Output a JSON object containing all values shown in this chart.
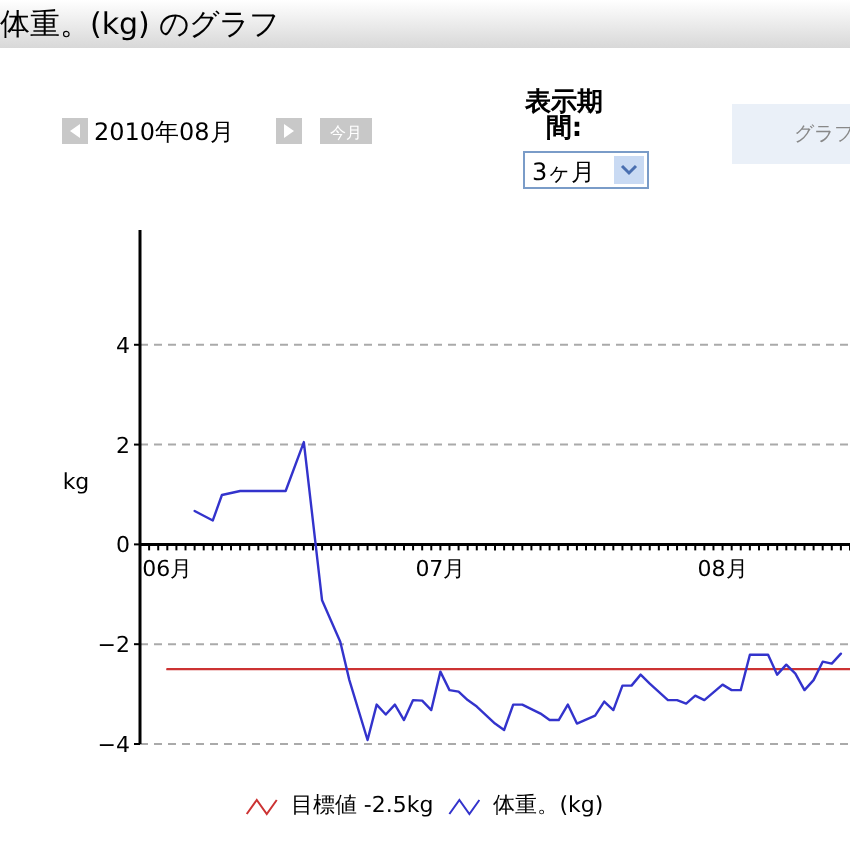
{
  "chart_data": {
    "type": "line",
    "title": "体重。(kg) のグラフ",
    "ylabel": "kg",
    "annotations": [
      "2010年08月",
      "今月",
      "表示期間:",
      "3ヶ月",
      "グラフ"
    ],
    "xlim": [
      "2010-05-29",
      "2010-08-15"
    ],
    "xticks": [
      {
        "value": "2010-06-01",
        "label": "06月"
      },
      {
        "value": "2010-07-01",
        "label": "07月"
      },
      {
        "value": "2010-08-01",
        "label": "08月"
      }
    ],
    "ylim": [
      -4,
      6.3
    ],
    "yticks": [
      -4,
      -2,
      0,
      2,
      4
    ],
    "grid": "y",
    "legend": "bottom",
    "marker": "none",
    "line_style": "solid",
    "series": [
      {
        "name": "目標値 -2.5kg",
        "color": "#cc3333",
        "x": [
          "2010-06-01",
          "2010-08-15"
        ],
        "values": [
          -2.5,
          -2.5
        ]
      },
      {
        "name": "体重。(kg)",
        "color": "#3333cc",
        "x": [
          "2010-06-04",
          "2010-06-06",
          "2010-06-07",
          "2010-06-09",
          "2010-06-14",
          "2010-06-16",
          "2010-06-18",
          "2010-06-20",
          "2010-06-21",
          "2010-06-23",
          "2010-06-24",
          "2010-06-25",
          "2010-06-26",
          "2010-06-27",
          "2010-06-28",
          "2010-06-29",
          "2010-06-30",
          "2010-07-01",
          "2010-07-02",
          "2010-07-03",
          "2010-07-04",
          "2010-07-05",
          "2010-07-07",
          "2010-07-08",
          "2010-07-09",
          "2010-07-10",
          "2010-07-12",
          "2010-07-13",
          "2010-07-14",
          "2010-07-15",
          "2010-07-16",
          "2010-07-18",
          "2010-07-19",
          "2010-07-20",
          "2010-07-21",
          "2010-07-22",
          "2010-07-23",
          "2010-07-24",
          "2010-07-26",
          "2010-07-27",
          "2010-07-28",
          "2010-07-29",
          "2010-07-30",
          "2010-08-01",
          "2010-08-02",
          "2010-08-03",
          "2010-08-04",
          "2010-08-06",
          "2010-08-07",
          "2010-08-08",
          "2010-08-09",
          "2010-08-10",
          "2010-08-11",
          "2010-08-12",
          "2010-08-13",
          "2010-08-14"
        ],
        "values": [
          0.67,
          0.48,
          0.99,
          1.07,
          1.07,
          2.05,
          -1.12,
          -1.95,
          -2.72,
          -3.92,
          -3.21,
          -3.41,
          -3.21,
          -3.52,
          -3.12,
          -3.13,
          -3.32,
          -2.55,
          -2.92,
          -2.95,
          -3.12,
          -3.25,
          -3.59,
          -3.72,
          -3.21,
          -3.21,
          -3.39,
          -3.52,
          -3.52,
          -3.21,
          -3.59,
          -3.43,
          -3.15,
          -3.32,
          -2.83,
          -2.83,
          -2.61,
          -2.79,
          -3.12,
          -3.12,
          -3.19,
          -3.03,
          -3.12,
          -2.81,
          -2.92,
          -2.92,
          -2.21,
          -2.21,
          -2.61,
          -2.41,
          -2.59,
          -2.92,
          -2.72,
          -2.35,
          -2.39,
          -2.19
        ]
      }
    ]
  }
}
